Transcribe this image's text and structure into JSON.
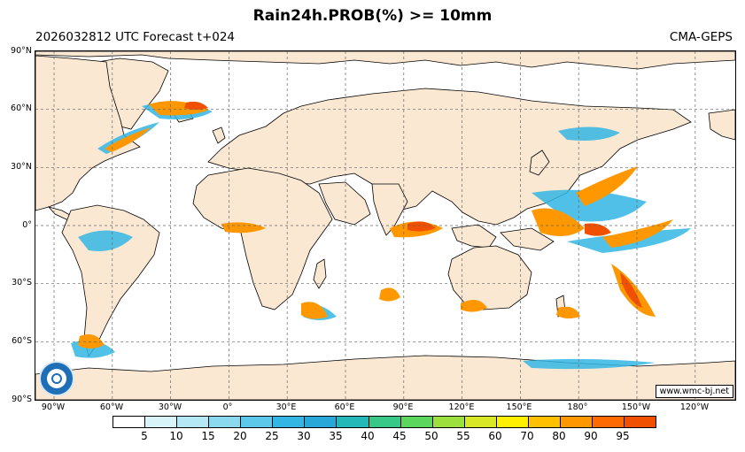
{
  "header": {
    "title": "Rain24h.PROB(%) >= 10mm",
    "subtitle_left": "2026032812 UTC Forecast t+024",
    "subtitle_right": "CMA-GEPS"
  },
  "map": {
    "lat_labels": [
      "90°N",
      "60°N",
      "30°N",
      "0°",
      "30°S",
      "60°S",
      "90°S"
    ],
    "lon_labels": [
      "90°W",
      "60°W",
      "30°W",
      "0°",
      "30°E",
      "60°E",
      "90°E",
      "120°E",
      "150°E",
      "180°",
      "150°W",
      "120°W"
    ],
    "source": "www.wmc-bj.net",
    "land_color": "#fbe8d3",
    "ocean_color": "#ffffff",
    "grid": true
  },
  "colorbar": {
    "labels": [
      "5",
      "10",
      "15",
      "20",
      "25",
      "30",
      "35",
      "40",
      "45",
      "50",
      "55",
      "60",
      "70",
      "80",
      "90",
      "95"
    ],
    "colors": [
      "#ffffff",
      "#d9f4f9",
      "#b4e8f4",
      "#8bd9ef",
      "#5dc8ea",
      "#33b6e4",
      "#27a8d8",
      "#24b8b8",
      "#38c888",
      "#5cd65c",
      "#9be03c",
      "#d8e825",
      "#fff000",
      "#ffc000",
      "#ff9800",
      "#ff6a00",
      "#f05000"
    ]
  },
  "logo_name": "cma-logo"
}
